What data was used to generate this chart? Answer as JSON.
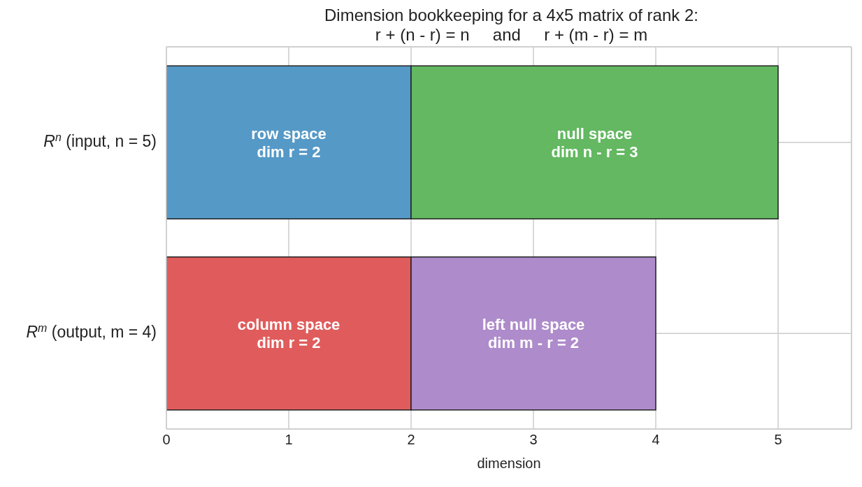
{
  "chart_data": {
    "type": "bar",
    "orientation": "horizontal",
    "stacked": true,
    "title": "Dimension bookkeeping for a 4x5 matrix of rank 2:\nr + (n - r) = n     and     r + (m - r) = m",
    "xlabel": "dimension",
    "categories": [
      "R$^{n}$ (input, n = 5)",
      "R$^{m}$ (output, m = 4)"
    ],
    "series": [
      {
        "values": [
          2,
          2
        ],
        "colors": [
          "#5599c7",
          "#e05c5c"
        ],
        "value_labels": [
          "row space\ndim r = 2",
          "column space\ndim r = 2"
        ]
      },
      {
        "values": [
          3,
          2
        ],
        "colors": [
          "#63b861",
          "#ae8bcb"
        ],
        "value_labels": [
          "null space\ndim n - r = 3",
          "left null space\ndim m - r = 2"
        ]
      }
    ],
    "xlim": [
      0,
      5.6
    ],
    "xticks": [
      0,
      1,
      2,
      3,
      4,
      5
    ],
    "grid": true,
    "legend": false
  }
}
